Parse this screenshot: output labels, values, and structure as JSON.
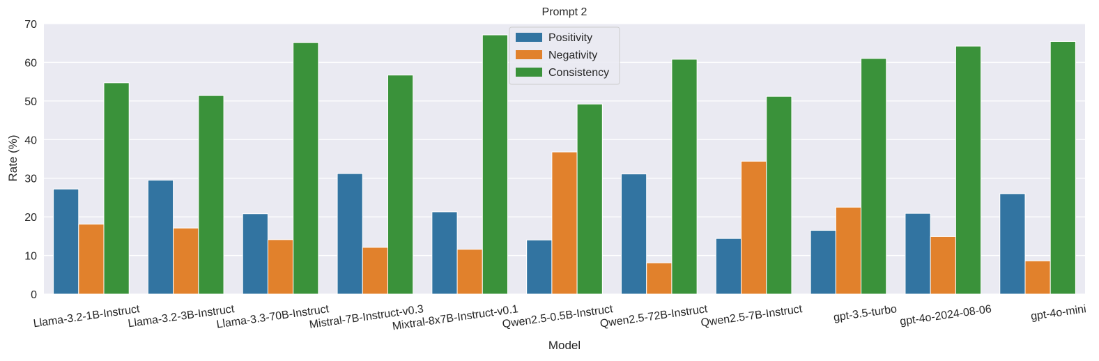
{
  "chart_data": {
    "type": "bar",
    "title": "Prompt 2",
    "xlabel": "Model",
    "ylabel": "Rate (%)",
    "ylim": [
      0,
      70
    ],
    "yticks": [
      0,
      10,
      20,
      30,
      40,
      50,
      60,
      70
    ],
    "grid": true,
    "legend_position": "top-center",
    "categories": [
      "Llama-3.2-1B-Instruct",
      "Llama-3.2-3B-Instruct",
      "Llama-3.3-70B-Instruct",
      "Mistral-7B-Instruct-v0.3",
      "Mixtral-8x7B-Instruct-v0.1",
      "Qwen2.5-0.5B-Instruct",
      "Qwen2.5-72B-Instruct",
      "Qwen2.5-7B-Instruct",
      "gpt-3.5-turbo",
      "gpt-4o-2024-08-06",
      "gpt-4o-mini"
    ],
    "series": [
      {
        "name": "Positivity",
        "color": "#3274a1",
        "values": [
          27.2,
          29.5,
          20.8,
          31.2,
          21.3,
          14.0,
          31.1,
          14.4,
          16.5,
          20.9,
          26.0
        ]
      },
      {
        "name": "Negativity",
        "color": "#e1812c",
        "values": [
          18.1,
          17.1,
          14.1,
          12.1,
          11.6,
          36.8,
          8.1,
          34.4,
          22.5,
          14.9,
          8.6
        ]
      },
      {
        "name": "Consistency",
        "color": "#3a923a",
        "values": [
          54.7,
          51.4,
          65.1,
          56.7,
          67.1,
          49.2,
          60.8,
          51.2,
          61.0,
          64.2,
          65.4
        ]
      }
    ]
  }
}
